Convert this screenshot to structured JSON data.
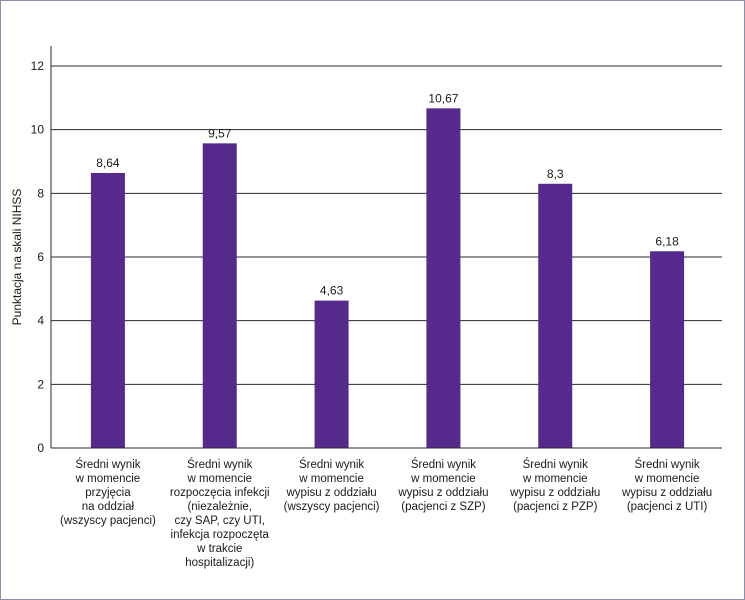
{
  "chart_data": {
    "type": "bar",
    "title": "",
    "xlabel": "",
    "ylabel": "Punktacja na skali NIHSS",
    "ylim": [
      0,
      12
    ],
    "yticks": [
      "0",
      "2",
      "4",
      "6",
      "8",
      "10",
      "12"
    ],
    "grid": true,
    "bar_color": "#552a8c",
    "categories": [
      [
        "Średni wynik",
        "w momencie",
        "przyjęcia",
        "na oddział",
        "(wszyscy pacjenci)"
      ],
      [
        "Średni wynik",
        "w momencie",
        "rozpoczęcia infekcji",
        "(niezależnie,",
        "czy SAP, czy UTI,",
        "infekcja rozpoczęta",
        "w trakcie",
        "hospitalizacji)"
      ],
      [
        "Średni wynik",
        "w momencie",
        "wypisu z oddziału",
        "(wszyscy pacjenci)"
      ],
      [
        "Średni wynik",
        "w momencie",
        "wypisu z oddziału",
        "(pacjenci z SZP)"
      ],
      [
        "Średni wynik",
        "w momencie",
        "wypisu z oddziału",
        "(pacjenci z PZP)"
      ],
      [
        "Średni wynik",
        "w momencie",
        "wypisu z oddziału",
        "(pacjenci z UTI)"
      ]
    ],
    "values": [
      8.64,
      9.57,
      4.63,
      10.67,
      8.3,
      6.18
    ],
    "value_labels": [
      "8,64",
      "9,57",
      "4,63",
      "10,67",
      "8,3",
      "6,18"
    ]
  }
}
